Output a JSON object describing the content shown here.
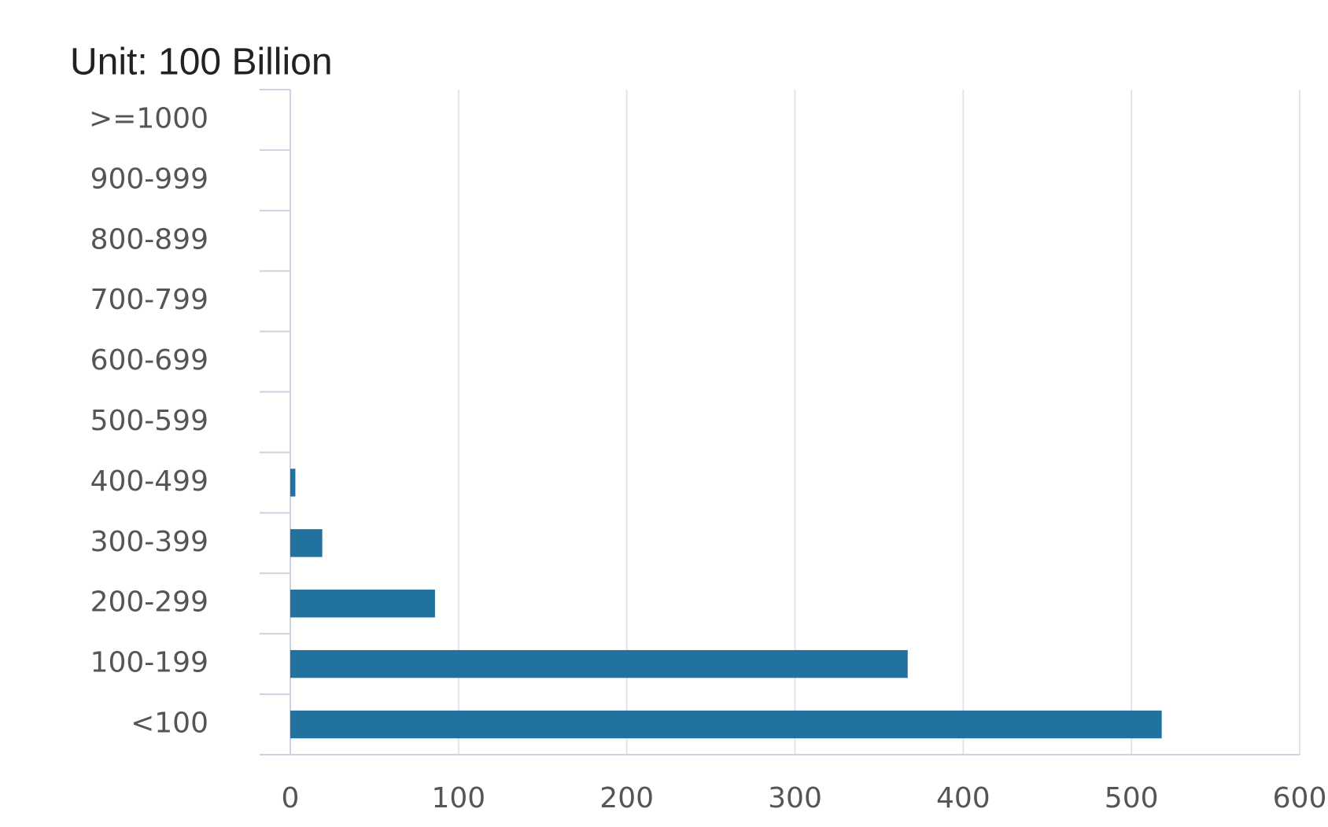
{
  "chart_data": {
    "type": "bar",
    "orientation": "horizontal",
    "title": "Unit: 100 Billion",
    "categories": [
      ">=1000",
      "900-999",
      "800-899",
      "700-799",
      "600-699",
      "500-599",
      "400-499",
      "300-399",
      "200-299",
      "100-199",
      "<100"
    ],
    "values": [
      0,
      0,
      0,
      0,
      0,
      0,
      3,
      19,
      86,
      367,
      518
    ],
    "color": "#2272a0",
    "xlim": [
      0,
      600
    ],
    "xticks": [
      0,
      100,
      200,
      300,
      400,
      500,
      600
    ],
    "grid": true
  }
}
